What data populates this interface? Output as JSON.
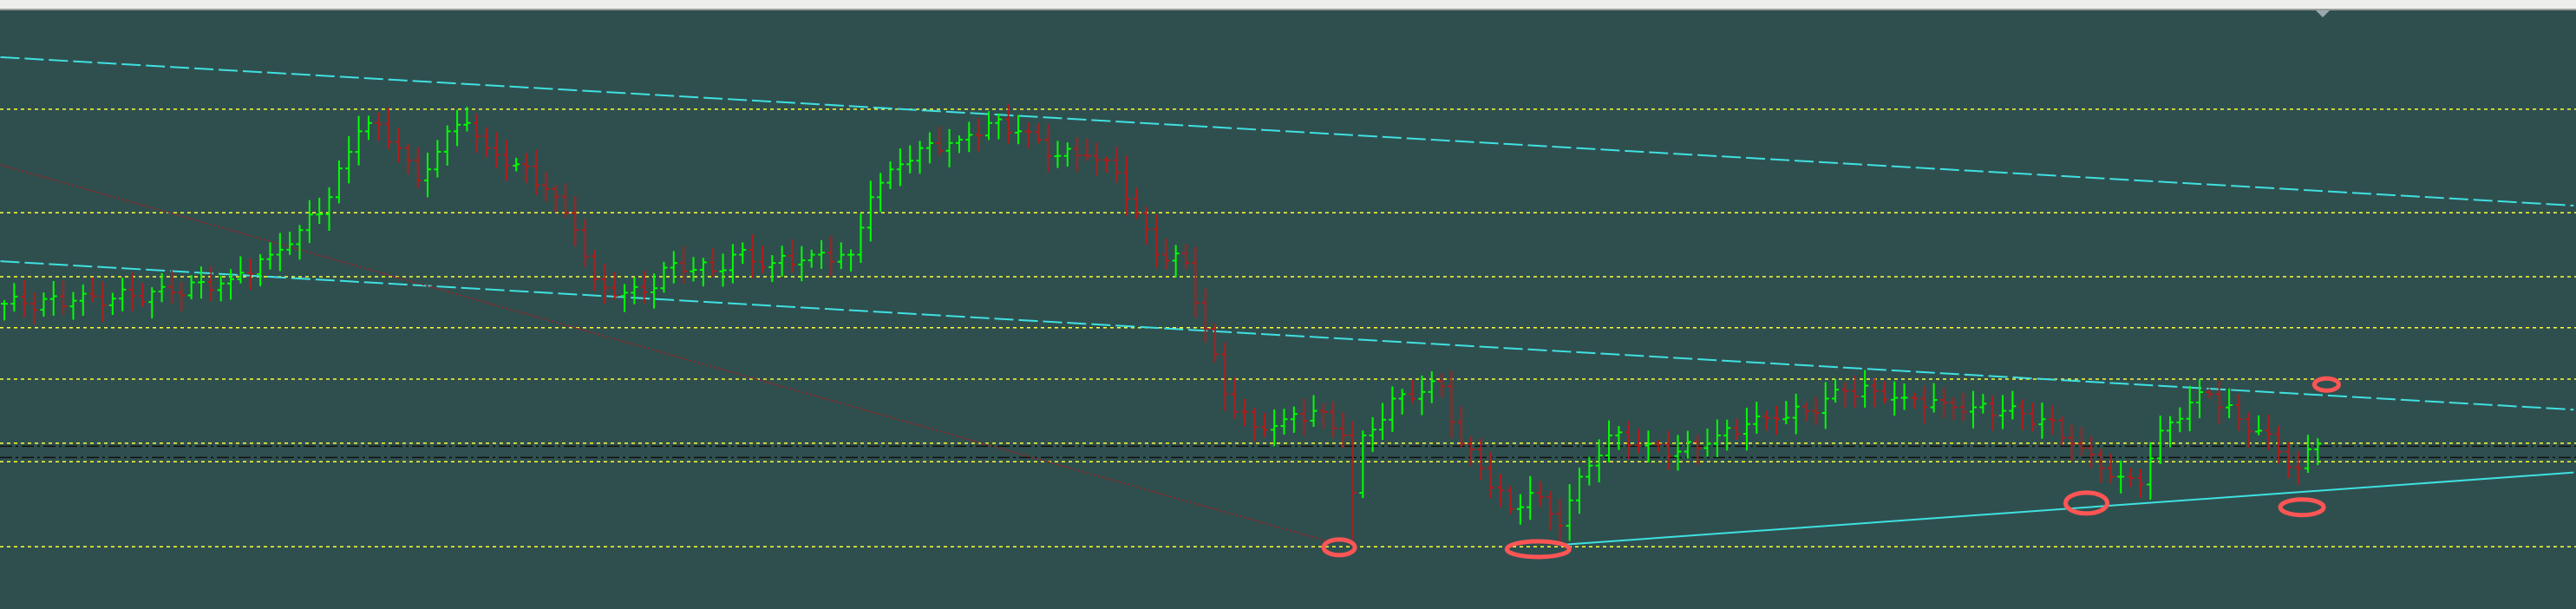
{
  "chart_data": {
    "type": "ohlc",
    "title": "",
    "xlabel": "",
    "ylabel": "",
    "x_units": "bar index",
    "ylim": [
      0,
      100
    ],
    "grid": false,
    "colors": {
      "background": "#2f4f4f",
      "bull": "#00ff00",
      "bear": "#b01c1c",
      "horizontal_level": "#ffff33",
      "trendline": "#40e0e0",
      "red_trendline": "#8b2a2a",
      "annotation": "#ff5555"
    },
    "closes": [
      [
        0,
        51.0
      ],
      [
        2,
        51.0
      ],
      [
        7,
        51.5
      ],
      [
        13,
        52.3
      ],
      [
        17,
        52.9
      ],
      [
        23,
        55.1
      ],
      [
        27,
        59.2
      ],
      [
        30,
        63.3
      ],
      [
        33,
        68.8
      ],
      [
        36,
        79.8
      ],
      [
        37,
        81.2
      ],
      [
        40,
        77.0
      ],
      [
        42,
        71.6
      ],
      [
        45,
        79.8
      ],
      [
        47,
        81.2
      ],
      [
        49,
        77.0
      ],
      [
        52,
        74.3
      ],
      [
        55,
        70.2
      ],
      [
        58,
        63.3
      ],
      [
        60,
        55.1
      ],
      [
        62,
        52.3
      ],
      [
        65,
        52.9
      ],
      [
        68,
        57.8
      ],
      [
        72,
        56.4
      ],
      [
        74,
        59.2
      ],
      [
        78,
        57.8
      ],
      [
        82,
        59.2
      ],
      [
        86,
        59.2
      ],
      [
        88,
        68.8
      ],
      [
        91,
        74.3
      ],
      [
        93,
        77.0
      ],
      [
        97,
        78.4
      ],
      [
        100,
        81.2
      ],
      [
        103,
        79.8
      ],
      [
        107,
        75.7
      ],
      [
        110,
        75.7
      ],
      [
        113,
        72.9
      ],
      [
        115,
        66.1
      ],
      [
        117,
        59.2
      ],
      [
        120,
        57.8
      ],
      [
        122,
        46.8
      ],
      [
        124,
        35.9
      ],
      [
        127,
        30.4
      ],
      [
        130,
        31.7
      ],
      [
        133,
        33.1
      ],
      [
        136,
        29.0
      ],
      [
        137,
        19.4
      ],
      [
        138,
        29.0
      ],
      [
        142,
        35.9
      ],
      [
        146,
        37.2
      ],
      [
        148,
        27.6
      ],
      [
        150,
        23.5
      ],
      [
        153,
        16.7
      ],
      [
        155,
        19.4
      ],
      [
        158,
        13.9
      ],
      [
        160,
        22.1
      ],
      [
        163,
        29.0
      ],
      [
        167,
        27.6
      ],
      [
        170,
        26.3
      ],
      [
        173,
        27.6
      ],
      [
        177,
        30.9
      ],
      [
        180,
        31.7
      ],
      [
        183,
        33.1
      ],
      [
        187,
        36.4
      ],
      [
        190,
        36.4
      ],
      [
        193,
        35.3
      ],
      [
        197,
        34.5
      ],
      [
        200,
        33.7
      ],
      [
        203,
        33.1
      ],
      [
        207,
        31.7
      ],
      [
        210,
        27.6
      ],
      [
        213,
        23.5
      ],
      [
        215,
        22.1
      ],
      [
        217,
        20.8
      ],
      [
        219,
        29.8
      ],
      [
        222,
        34.5
      ],
      [
        224,
        35.9
      ],
      [
        227,
        31.7
      ],
      [
        229,
        29.8
      ],
      [
        231,
        26.3
      ],
      [
        233,
        23.5
      ],
      [
        235,
        27.6
      ]
    ],
    "marked_lows": [
      [
        137,
        11.6
      ],
      [
        158,
        11.0
      ]
    ],
    "horizontal_levels": [
      83.5,
      66.2,
      55.5,
      47.0,
      38.4,
      27.7,
      24.6,
      10.4
    ],
    "dashdot_levels": [
      27.2,
      25.3
    ],
    "trendlines": [
      {
        "style": "dashed",
        "color": "trendline",
        "from": [
          -0.4,
          92.2
        ],
        "to": [
          261,
          67.4
        ]
      },
      {
        "style": "dashed",
        "color": "trendline",
        "from": [
          -0.4,
          58.1
        ],
        "to": [
          261,
          33.3
        ]
      },
      {
        "style": "solid",
        "color": "trendline",
        "from": [
          158,
          10.7
        ],
        "to": [
          261,
          22.8
        ]
      },
      {
        "style": "dotted",
        "color": "red_trendline",
        "from": [
          -0.4,
          74.2
        ],
        "to": [
          134.7,
          11.2
        ]
      }
    ],
    "annotations": [
      {
        "shape": "ellipse",
        "at": [
          135.6,
          10.3
        ]
      },
      {
        "shape": "ellipse",
        "at": [
          155.8,
          10.0
        ]
      },
      {
        "shape": "ellipse",
        "at": [
          211.5,
          17.7
        ]
      },
      {
        "shape": "ellipse",
        "at": [
          233.4,
          17.0
        ]
      },
      {
        "shape": "scribble",
        "at": [
          235.9,
          37.5
        ]
      }
    ]
  }
}
